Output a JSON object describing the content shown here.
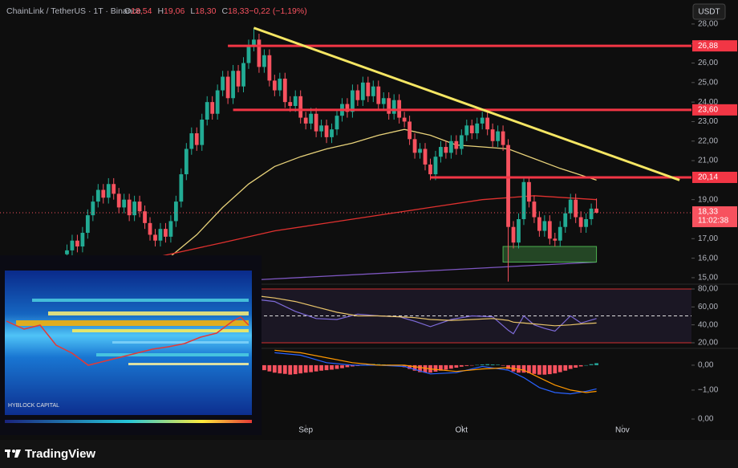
{
  "header": {
    "symbol": "ChainLink / TetherUS · 1T · Binance",
    "ohlc": [
      {
        "key": "O",
        "value": "18,54"
      },
      {
        "key": "H",
        "value": "19,06"
      },
      {
        "key": "L",
        "value": "18,30"
      },
      {
        "key": "C",
        "value": "18,33"
      },
      {
        "key": "",
        "value": "−0,22 (−1,19%)"
      }
    ],
    "currency": "USDT"
  },
  "inset": {
    "watermark": "HYBLOCK CAPITAL"
  },
  "footer": {
    "brand": "TradingView"
  },
  "chart_data": [
    {
      "type": "candlestick",
      "up_color": "#22ab94",
      "down_color": "#f7525f",
      "x": [
        0,
        1,
        2,
        3,
        4,
        5,
        6,
        7,
        8,
        9,
        10,
        11,
        12,
        13,
        14,
        15,
        16,
        17,
        18,
        19,
        20,
        21,
        22,
        23,
        24,
        25,
        26,
        27,
        28,
        29,
        30,
        31,
        32,
        33,
        34,
        35,
        36,
        37,
        38,
        39,
        40,
        41,
        42,
        43,
        44,
        45,
        46,
        47,
        48,
        49,
        50,
        51,
        52,
        53,
        54,
        55,
        56,
        57,
        58,
        59,
        60,
        61,
        62,
        63,
        64,
        65,
        66,
        67,
        68,
        69,
        70,
        71,
        72,
        73,
        74,
        75,
        76,
        77,
        78,
        79,
        80,
        81,
        82,
        83,
        84,
        85,
        86,
        87,
        88,
        89,
        90,
        91,
        92,
        93,
        94,
        95,
        96,
        97,
        98,
        99,
        100,
        101,
        102
      ],
      "open": [
        16.2,
        16.4,
        16.9,
        16.6,
        17.3,
        18.2,
        18.9,
        19.5,
        19.1,
        19.8,
        19.3,
        18.6,
        19.0,
        18.2,
        18.9,
        18.4,
        17.8,
        17.2,
        16.9,
        17.5,
        17.1,
        17.9,
        18.9,
        20.3,
        21.6,
        22.4,
        21.8,
        23.1,
        24.0,
        23.4,
        24.6,
        25.3,
        24.2,
        25.6,
        24.8,
        26.0,
        26.9,
        27.2,
        25.8,
        26.4,
        25.1,
        24.6,
        25.2,
        24.0,
        23.8,
        24.3,
        23.2,
        22.9,
        23.4,
        22.5,
        22.8,
        22.2,
        22.6,
        23.3,
        23.9,
        23.5,
        24.6,
        24.1,
        25.0,
        24.3,
        24.8,
        23.9,
        24.2,
        23.4,
        24.1,
        23.2,
        23.0,
        22.1,
        21.4,
        21.6,
        20.8,
        20.3,
        21.2,
        21.7,
        21.4,
        22.0,
        21.6,
        22.3,
        22.8,
        22.4,
        22.9,
        23.2,
        22.6,
        22.0,
        22.5,
        21.8,
        17.6,
        16.8,
        18.0,
        19.9,
        18.9,
        18.1,
        17.4,
        17.9,
        17.0,
        16.9,
        17.6,
        18.3,
        19.0,
        18.1,
        17.6,
        18.0,
        18.54
      ],
      "high": [
        16.7,
        17.2,
        17.2,
        17.6,
        18.5,
        19.2,
        19.8,
        19.8,
        20.1,
        20.1,
        19.6,
        19.3,
        19.3,
        19.2,
        19.2,
        18.7,
        18.1,
        17.5,
        17.8,
        17.8,
        18.2,
        19.2,
        20.6,
        21.9,
        22.7,
        22.7,
        23.4,
        24.3,
        24.3,
        24.9,
        25.6,
        25.6,
        25.9,
        25.9,
        26.3,
        27.2,
        27.8,
        27.5,
        26.7,
        26.7,
        25.4,
        25.5,
        25.5,
        24.3,
        24.6,
        24.6,
        23.5,
        23.7,
        23.7,
        23.1,
        23.1,
        22.9,
        23.6,
        24.2,
        24.2,
        24.9,
        24.9,
        25.3,
        25.3,
        25.1,
        25.1,
        24.5,
        24.5,
        24.4,
        24.4,
        23.5,
        23.3,
        22.4,
        21.9,
        21.9,
        21.1,
        21.5,
        22.0,
        22.0,
        22.3,
        22.3,
        22.6,
        23.1,
        23.1,
        23.2,
        23.5,
        23.6,
        22.9,
        22.8,
        22.8,
        22.1,
        17.9,
        18.3,
        20.2,
        20.2,
        19.2,
        18.4,
        18.2,
        18.2,
        17.3,
        17.9,
        18.6,
        19.3,
        19.3,
        18.4,
        18.3,
        18.8,
        19.06
      ],
      "low": [
        15.9,
        16.1,
        16.3,
        16.3,
        17.0,
        17.9,
        18.6,
        18.8,
        18.8,
        19.0,
        18.3,
        18.3,
        17.9,
        17.9,
        18.1,
        17.5,
        16.9,
        16.6,
        16.6,
        16.8,
        16.8,
        17.6,
        18.6,
        20.0,
        21.3,
        21.5,
        21.5,
        22.8,
        23.1,
        23.1,
        24.3,
        23.9,
        23.9,
        24.5,
        24.5,
        25.7,
        26.6,
        25.5,
        25.5,
        24.8,
        24.3,
        24.3,
        23.7,
        23.5,
        23.5,
        22.9,
        22.6,
        22.6,
        22.2,
        22.2,
        21.9,
        21.9,
        22.3,
        23.0,
        23.2,
        23.2,
        23.8,
        23.8,
        24.0,
        24.0,
        23.6,
        23.6,
        23.1,
        23.1,
        22.9,
        22.7,
        21.8,
        21.1,
        21.1,
        20.5,
        20.0,
        20.0,
        20.9,
        21.1,
        21.1,
        21.3,
        21.3,
        22.0,
        22.1,
        22.1,
        22.6,
        22.3,
        21.7,
        21.7,
        21.5,
        14.8,
        16.5,
        16.5,
        17.7,
        18.6,
        17.8,
        17.1,
        17.1,
        16.7,
        16.6,
        16.6,
        17.3,
        18.0,
        17.8,
        17.3,
        17.3,
        17.7,
        18.3
      ],
      "close": [
        16.4,
        16.9,
        16.6,
        17.3,
        18.2,
        18.9,
        19.5,
        19.1,
        19.8,
        19.3,
        18.6,
        19.0,
        18.2,
        18.9,
        18.4,
        17.8,
        17.2,
        16.9,
        17.5,
        17.1,
        17.9,
        18.9,
        20.3,
        21.6,
        22.4,
        21.8,
        23.1,
        24.0,
        23.4,
        24.6,
        25.3,
        24.2,
        25.6,
        24.8,
        26.0,
        26.9,
        27.2,
        25.8,
        26.4,
        25.1,
        24.6,
        25.2,
        24.0,
        23.8,
        24.3,
        23.2,
        22.9,
        23.4,
        22.5,
        22.8,
        22.2,
        22.6,
        23.3,
        23.9,
        23.5,
        24.6,
        24.1,
        25.0,
        24.3,
        24.8,
        23.9,
        24.2,
        23.4,
        24.1,
        23.2,
        23.0,
        22.1,
        21.4,
        21.6,
        20.8,
        20.3,
        21.2,
        21.7,
        21.4,
        22.0,
        21.6,
        22.3,
        22.8,
        22.4,
        22.9,
        23.2,
        22.6,
        22.0,
        22.5,
        21.8,
        17.6,
        16.8,
        18.0,
        19.9,
        18.9,
        18.1,
        17.4,
        17.9,
        17.0,
        16.9,
        17.6,
        18.3,
        19.0,
        18.1,
        17.6,
        18.0,
        18.54,
        18.33
      ],
      "xlim": [
        -12.9,
        120.3
      ],
      "xticks": [
        {
          "value": 46,
          "label": "Sep"
        },
        {
          "value": 76,
          "label": "Okt"
        },
        {
          "value": 107,
          "label": "Nov"
        }
      ],
      "ylim": [
        14.75,
        29.23
      ],
      "yticks": [
        {
          "value": 15,
          "label": "15,00"
        },
        {
          "value": 16,
          "label": "16,00"
        },
        {
          "value": 17,
          "label": "17,00"
        },
        {
          "value": 19,
          "label": "19,00"
        },
        {
          "value": 21,
          "label": "21,00"
        },
        {
          "value": 22,
          "label": "22,00"
        },
        {
          "value": 23,
          "label": "23,00"
        },
        {
          "value": 24,
          "label": "24,00"
        },
        {
          "value": 25,
          "label": "25,00"
        },
        {
          "value": 26,
          "label": "26,00"
        },
        {
          "value": 27,
          "label": "27,00"
        },
        {
          "value": 28,
          "label": "28,00"
        }
      ],
      "levels": [
        {
          "value": 26.88,
          "label": "26,88",
          "x_start": 31
        },
        {
          "value": 23.6,
          "label": "23,60",
          "x_start": 32
        },
        {
          "value": 20.14,
          "label": "20,14",
          "x_start": 70
        }
      ],
      "level_color": "#f23645",
      "trendline": {
        "color": "#f5e663",
        "x": [
          36,
          118
        ],
        "values": [
          27.8,
          20.0
        ]
      },
      "moving_averages": [
        {
          "color": "#e8d27a",
          "x": [
            20,
            25,
            30,
            35,
            40,
            45,
            50,
            55,
            60,
            65,
            70,
            75,
            80,
            85,
            90,
            95,
            102
          ],
          "values": [
            16.1,
            17.2,
            18.6,
            19.8,
            20.7,
            21.2,
            21.6,
            21.9,
            22.3,
            22.6,
            22.3,
            21.8,
            21.7,
            21.6,
            21.1,
            20.6,
            20.0
          ]
        },
        {
          "color": "#e0312f",
          "x": [
            18,
            30,
            40,
            50,
            60,
            70,
            80,
            90,
            102
          ],
          "values": [
            16.1,
            16.8,
            17.4,
            17.8,
            18.2,
            18.6,
            19.0,
            19.2,
            19.0
          ]
        },
        {
          "color": "#7e57c2",
          "x": [
            37,
            102
          ],
          "values": [
            14.9,
            15.8
          ]
        }
      ],
      "zone": {
        "color": "#4caf50",
        "x": [
          84,
          102
        ],
        "values": [
          15.8,
          16.6
        ]
      },
      "last_price_label": "18,33",
      "countdown": "11:02:38"
    },
    {
      "type": "line",
      "ylim": [
        15.5,
        83.6
      ],
      "yticks": [
        {
          "value": 20,
          "label": "20,00"
        },
        {
          "value": 40,
          "label": "40,00"
        },
        {
          "value": 60,
          "label": "60,00"
        },
        {
          "value": 80,
          "label": "80,00"
        }
      ],
      "bands": [
        20,
        50,
        80
      ],
      "series": [
        {
          "color": "#7e6bd8",
          "x": [
            37,
            40,
            44,
            48,
            52,
            56,
            60,
            64,
            67,
            70,
            74,
            78,
            82,
            85,
            86,
            88,
            90,
            92,
            94,
            97,
            99,
            102
          ],
          "values": [
            68,
            66,
            55,
            47,
            46,
            52,
            50,
            49,
            44,
            38,
            46,
            50,
            49,
            34,
            30,
            50,
            40,
            36,
            33,
            50,
            42,
            47
          ]
        },
        {
          "color": "#e8c46a",
          "x": [
            37,
            40,
            44,
            48,
            52,
            56,
            60,
            64,
            67,
            70,
            74,
            78,
            82,
            85,
            86,
            88,
            90,
            92,
            94,
            97,
            99,
            102
          ],
          "values": [
            72,
            70,
            66,
            60,
            54,
            50,
            50,
            49,
            48,
            46,
            45,
            46,
            47,
            45,
            43,
            42,
            41,
            40,
            39,
            40,
            41,
            42
          ]
        }
      ]
    },
    {
      "type": "histogram",
      "ylim": [
        -1.84,
        0.61
      ],
      "pos_color": "#26a69a",
      "neg_color": "#f7525f",
      "yticks": [
        {
          "value": 0,
          "label": "0,00"
        },
        {
          "value": -1,
          "label": "−1,00"
        }
      ],
      "x": [
        38,
        39,
        40,
        41,
        42,
        43,
        44,
        45,
        46,
        47,
        48,
        49,
        50,
        51,
        52,
        53,
        54,
        55,
        56,
        57,
        58,
        59,
        60,
        61,
        62,
        63,
        64,
        65,
        66,
        67,
        68,
        69,
        70,
        71,
        72,
        73,
        74,
        75,
        76,
        77,
        78,
        79,
        80,
        81,
        82,
        83,
        84,
        85,
        86,
        87,
        88,
        89,
        90,
        91,
        92,
        93,
        94,
        95,
        96,
        97,
        98,
        99,
        100,
        101,
        102
      ],
      "values": [
        -0.2,
        -0.25,
        -0.3,
        -0.33,
        -0.35,
        -0.38,
        -0.36,
        -0.33,
        -0.3,
        -0.28,
        -0.25,
        -0.22,
        -0.2,
        -0.18,
        -0.15,
        -0.12,
        -0.08,
        -0.05,
        -0.03,
        0.02,
        0.04,
        0.05,
        0.04,
        0.03,
        0.02,
        0.01,
        -0.02,
        -0.08,
        -0.15,
        -0.22,
        -0.28,
        -0.3,
        -0.3,
        -0.26,
        -0.22,
        -0.18,
        -0.14,
        -0.1,
        -0.06,
        -0.03,
        -0.01,
        0.01,
        0.03,
        0.04,
        0.03,
        0.02,
        -0.02,
        -0.15,
        -0.25,
        -0.3,
        -0.3,
        -0.32,
        -0.35,
        -0.38,
        -0.38,
        -0.36,
        -0.33,
        -0.28,
        -0.22,
        -0.15,
        -0.1,
        -0.05,
        0.0,
        0.04,
        0.08
      ],
      "series": [
        {
          "color": "#2962ff",
          "x": [
            40,
            45,
            50,
            55,
            60,
            65,
            70,
            75,
            80,
            85,
            88,
            91,
            94,
            97,
            100,
            102
          ],
          "values": [
            0.5,
            0.4,
            0.1,
            0.0,
            0.0,
            -0.05,
            -0.35,
            -0.3,
            -0.05,
            -0.2,
            -0.5,
            -0.9,
            -1.1,
            -1.15,
            -1.05,
            -0.95
          ]
        },
        {
          "color": "#ff9800",
          "x": [
            40,
            45,
            50,
            55,
            60,
            65,
            70,
            75,
            80,
            85,
            88,
            91,
            94,
            97,
            100,
            102
          ],
          "values": [
            0.6,
            0.5,
            0.3,
            0.1,
            0.0,
            0.0,
            -0.15,
            -0.25,
            -0.15,
            -0.1,
            -0.2,
            -0.5,
            -0.8,
            -1.0,
            -1.1,
            -1.05
          ]
        }
      ]
    },
    {
      "type": "empty",
      "ylim": [
        -1,
        1
      ],
      "yticks": [
        {
          "value": 0,
          "label": "0,00"
        }
      ]
    }
  ]
}
